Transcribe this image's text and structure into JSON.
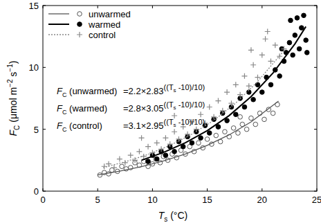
{
  "chart_data": {
    "type": "scatter",
    "xlabel": [
      "T",
      "s",
      " (°C)"
    ],
    "ylabel": [
      "F",
      "C",
      " (μmol m",
      "−2",
      " s",
      "−1",
      ")"
    ],
    "xlim": [
      0,
      25
    ],
    "xticks": [
      0,
      5,
      10,
      15,
      20,
      25
    ],
    "ylim": [
      0,
      15
    ],
    "yticks": [
      0,
      5,
      10,
      15
    ],
    "legend": "upper left",
    "grid": false,
    "series": [
      {
        "name": "unwarmed",
        "color": "#555555",
        "marker": "circle-open",
        "line_style": "solid",
        "x": [
          5.2,
          5.6,
          6.0,
          6.3,
          6.8,
          7.2,
          7.6,
          8.0,
          8.4,
          8.8,
          9.2,
          9.6,
          10.0,
          10.3,
          10.7,
          11.0,
          11.4,
          11.8,
          12.2,
          12.6,
          13.0,
          13.4,
          13.8,
          14.2,
          14.6,
          15.0,
          15.4,
          15.8,
          16.2,
          16.6,
          17.0,
          17.4,
          17.8,
          18.2,
          18.6,
          19.0,
          19.4,
          19.8,
          20.2,
          20.6,
          21.0,
          21.4,
          18.0,
          16.0
        ],
        "values": [
          1.3,
          1.5,
          1.4,
          1.7,
          1.6,
          2.0,
          1.8,
          1.9,
          2.3,
          2.1,
          2.4,
          2.0,
          2.2,
          2.6,
          2.3,
          2.8,
          2.5,
          3.0,
          2.7,
          3.3,
          3.0,
          3.6,
          3.2,
          3.9,
          3.5,
          4.2,
          3.8,
          4.5,
          4.0,
          4.8,
          4.4,
          5.1,
          4.7,
          5.4,
          5.0,
          5.9,
          5.4,
          6.3,
          5.8,
          6.6,
          6.3,
          7.0,
          6.0,
          5.2
        ],
        "fit": {
          "x": [
            5,
            7,
            9,
            11,
            13,
            15,
            17,
            19,
            21.5
          ],
          "values": [
            1.31,
            1.61,
            1.98,
            2.44,
            3.0,
            3.7,
            4.55,
            5.6,
            7.28
          ]
        }
      },
      {
        "name": "warmed",
        "color": "#000000",
        "marker": "circle",
        "line_style": "solid",
        "x": [
          9.6,
          10.0,
          10.4,
          10.8,
          11.2,
          11.6,
          12.0,
          12.4,
          12.8,
          13.2,
          13.6,
          14.0,
          14.4,
          14.8,
          15.2,
          15.6,
          16.0,
          16.4,
          16.8,
          17.2,
          17.6,
          18.0,
          18.4,
          18.8,
          19.2,
          19.6,
          20.0,
          20.4,
          20.8,
          21.2,
          21.6,
          22.0,
          22.2,
          22.5,
          22.8,
          23.0,
          23.2,
          23.4,
          23.6,
          23.8,
          24.0,
          22.6,
          21.8,
          24.1
        ],
        "values": [
          2.4,
          2.9,
          2.6,
          3.2,
          2.9,
          3.6,
          3.2,
          4.0,
          3.6,
          4.4,
          3.9,
          4.8,
          4.3,
          5.3,
          4.7,
          5.8,
          5.2,
          6.3,
          5.7,
          6.8,
          6.2,
          7.5,
          6.8,
          8.0,
          7.4,
          8.6,
          8.0,
          9.2,
          8.6,
          9.8,
          9.3,
          10.5,
          11.2,
          12.0,
          11.0,
          12.6,
          14.0,
          11.5,
          13.2,
          14.2,
          12.2,
          13.8,
          11.5,
          11.2
        ],
        "fit": {
          "x": [
            9,
            11,
            13,
            15,
            17,
            19,
            21,
            23,
            24
          ],
          "values": [
            2.5,
            3.13,
            3.91,
            4.89,
            6.11,
            7.64,
            9.55,
            11.9,
            13.3
          ]
        }
      },
      {
        "name": "control",
        "color": "#888888",
        "marker": "plus",
        "line_style": "dotted",
        "x": [
          5.6,
          6.0,
          6.5,
          7.0,
          7.5,
          8.0,
          8.4,
          8.8,
          9.2,
          9.6,
          10.0,
          10.4,
          10.8,
          11.2,
          11.6,
          12.0,
          12.4,
          12.8,
          13.2,
          13.6,
          14.0,
          14.4,
          14.8,
          15.2,
          15.6,
          16.0,
          16.4,
          16.8,
          17.2,
          17.6,
          18.0,
          18.4,
          18.8,
          19.2,
          19.6,
          20.0,
          20.3,
          20.5,
          20.8,
          21.2,
          21.6,
          22.0,
          19.0,
          12.0,
          9.0
        ],
        "values": [
          2.0,
          2.2,
          1.9,
          2.6,
          2.3,
          2.9,
          2.5,
          3.2,
          2.8,
          3.6,
          3.1,
          3.9,
          3.4,
          4.3,
          3.8,
          4.8,
          4.2,
          5.2,
          4.6,
          5.6,
          5.0,
          6.2,
          5.5,
          6.8,
          6.0,
          7.3,
          6.5,
          8.0,
          7.1,
          8.6,
          7.8,
          9.3,
          8.5,
          10.2,
          9.2,
          11.0,
          12.3,
          12.9,
          10.5,
          11.8,
          10.9,
          11.5,
          11.4,
          6.1,
          4.3
        ],
        "fit": {
          "x": [
            5.5,
            7.5,
            9.5,
            11.5,
            13.5,
            15.5,
            17.5,
            19.5,
            22
          ],
          "values": [
            1.9,
            2.37,
            2.94,
            3.66,
            4.55,
            5.66,
            7.04,
            8.76,
            11.35
          ]
        }
      }
    ],
    "annotations": [
      {
        "lhs": "F",
        "lhs_sub": "C",
        "label": " (unwarmed)",
        "rhs": "=2.2×2.83",
        "exp": "((T",
        "exp_sub": "s",
        "exp_end": " -10)/10)"
      },
      {
        "lhs": "F",
        "lhs_sub": "C",
        "label": " (warmed)",
        "rhs": "=2.8×3.05",
        "exp": "((T",
        "exp_sub": "s",
        "exp_end": " -10)/10)"
      },
      {
        "lhs": "F",
        "lhs_sub": "C",
        "label": " (control)",
        "rhs": "=3.1×2.95",
        "exp": "((T",
        "exp_sub": "s",
        "exp_end": " -10)/10)"
      }
    ]
  }
}
